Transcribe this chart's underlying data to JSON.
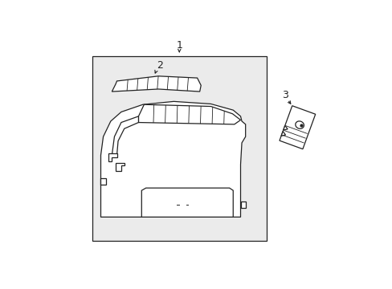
{
  "background_color": "#ffffff",
  "box_bg": "#ebebeb",
  "line_color": "#222222",
  "fig_width": 4.89,
  "fig_height": 3.6,
  "dpi": 100,
  "label1": "1",
  "label2": "2",
  "label3": "3"
}
